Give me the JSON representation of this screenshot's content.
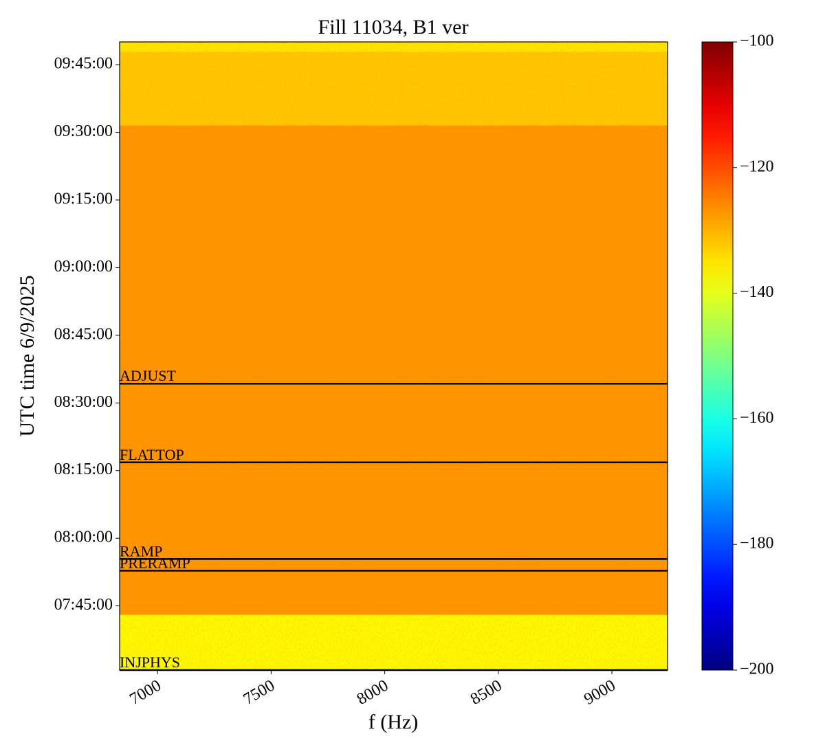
{
  "chart_data": {
    "type": "spectrogram",
    "title": "Fill 11034, B1 ver",
    "x_label": "f (Hz)",
    "y_label": "UTC time 6/9/2025",
    "xlim": [
      6833,
      9245
    ],
    "xticks": [
      7000,
      7500,
      8000,
      8500,
      9000
    ],
    "ylim": [
      "07:30:46",
      "09:50:03"
    ],
    "yticks": [
      "07:45:00",
      "08:00:00",
      "08:15:00",
      "08:30:00",
      "08:45:00",
      "09:00:00",
      "09:15:00",
      "09:30:00",
      "09:45:00"
    ],
    "bands": [
      {
        "start": "07:30:46",
        "end": "07:43:01",
        "value": -137
      },
      {
        "start": "07:43:01",
        "end": "09:31:32",
        "value": -127
      },
      {
        "start": "09:31:32",
        "end": "09:47:54",
        "value": -132
      },
      {
        "start": "09:47:54",
        "end": "09:50:03",
        "value": -135
      }
    ],
    "annotations": [
      {
        "label": "ADJUST",
        "time": "08:34:17"
      },
      {
        "label": "FLATTOP",
        "time": "08:16:49"
      },
      {
        "label": "RAMP",
        "time": "07:55:24"
      },
      {
        "label": "PRERAMP",
        "time": "07:52:48"
      },
      {
        "label": "INJPHYS",
        "time": "07:30:46"
      }
    ],
    "colormap": "jet",
    "clim": [
      -200,
      -100
    ],
    "cticks": [
      {
        "value": -200,
        "label": "−200"
      },
      {
        "value": -180,
        "label": "−180"
      },
      {
        "value": -160,
        "label": "−160"
      },
      {
        "value": -140,
        "label": "−140"
      },
      {
        "value": -120,
        "label": "−120"
      },
      {
        "value": -100,
        "label": "−100"
      }
    ]
  }
}
